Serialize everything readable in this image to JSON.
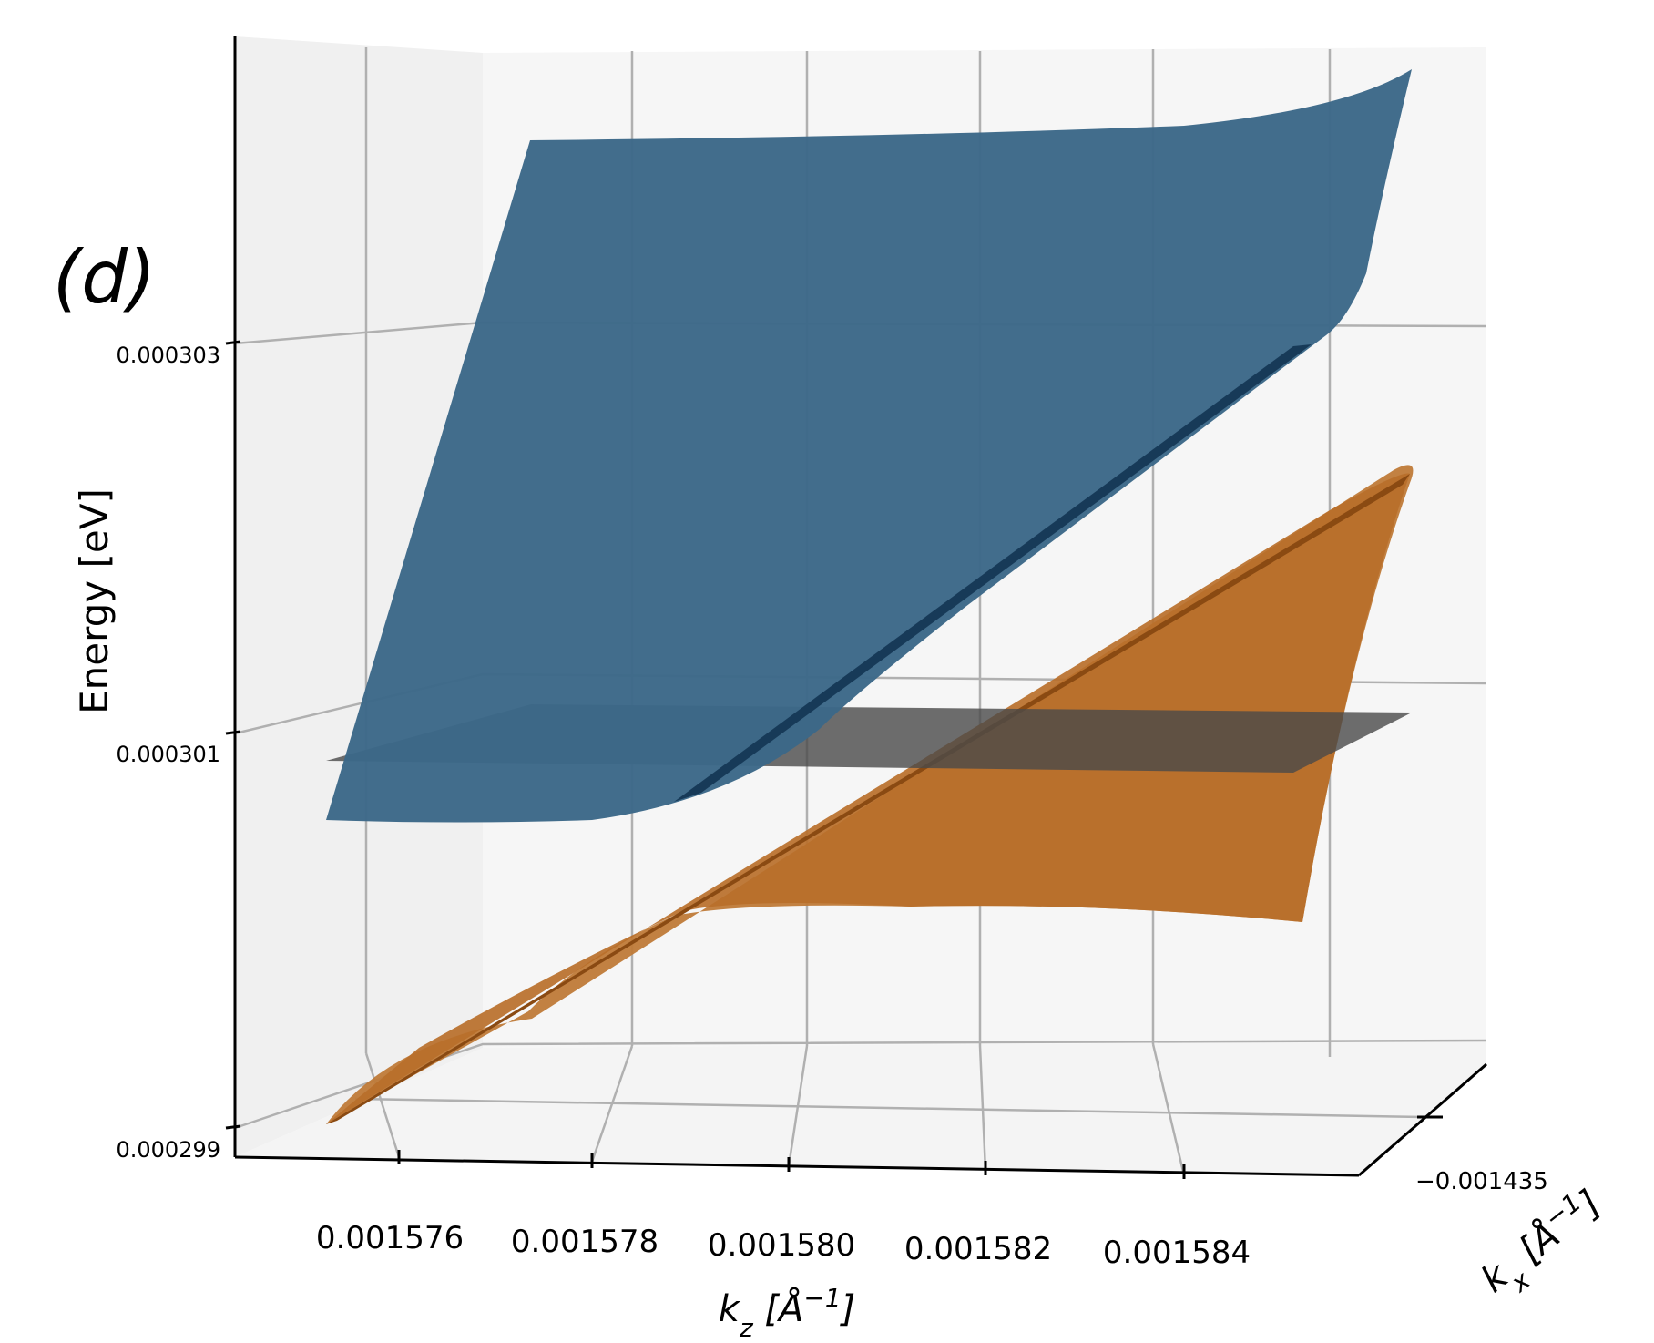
{
  "chart_data": {
    "type": "surface3d",
    "panel_label": "(d)",
    "zlabel": "Energy [eV]",
    "xlabel_kz": "k_z [Å^-1]",
    "ylabel_kx": "k_x [Å^-1]",
    "kz_ticks": [
      "0.001576",
      "0.001578",
      "0.001580",
      "0.001582",
      "0.001584"
    ],
    "kx_ticks": [
      "−0.001435"
    ],
    "energy_ticks": [
      "0.000299",
      "0.000301",
      "0.000303"
    ],
    "kz_range": [
      0.0015745,
      0.0015852
    ],
    "energy_range": [
      0.000299,
      0.000304
    ],
    "grid": true,
    "series": [
      {
        "color": "#3c6888",
        "kz": [
          0.001575,
          0.001576,
          0.001577,
          0.001578,
          0.001579,
          0.00158,
          0.001581,
          0.001582,
          0.001583,
          0.001584,
          0.0015847
        ],
        "energy": [
          0.0003004,
          0.0003007,
          0.0003009,
          0.0003011,
          0.0003014,
          0.0003016,
          0.000302,
          0.0003023,
          0.0003026,
          0.0003029,
          0.0003031
        ]
      },
      {
        "color": "#b86f2a",
        "kz": [
          0.001575,
          0.001576,
          0.001577,
          0.001578,
          0.001579,
          0.00158,
          0.001581,
          0.001582,
          0.001583,
          0.001584,
          0.0015847
        ],
        "energy": [
          0.0002994,
          0.0002997,
          0.0002999,
          0.0003002,
          0.0003005,
          0.0003007,
          0.0003009,
          0.0003012,
          0.0003014,
          0.0003017,
          0.0003019
        ]
      },
      {
        "color": "#555555",
        "kz": [
          0.001575,
          0.00158,
          0.0015847
        ],
        "energy": [
          0.000301,
          0.000301,
          0.000301
        ]
      }
    ]
  }
}
